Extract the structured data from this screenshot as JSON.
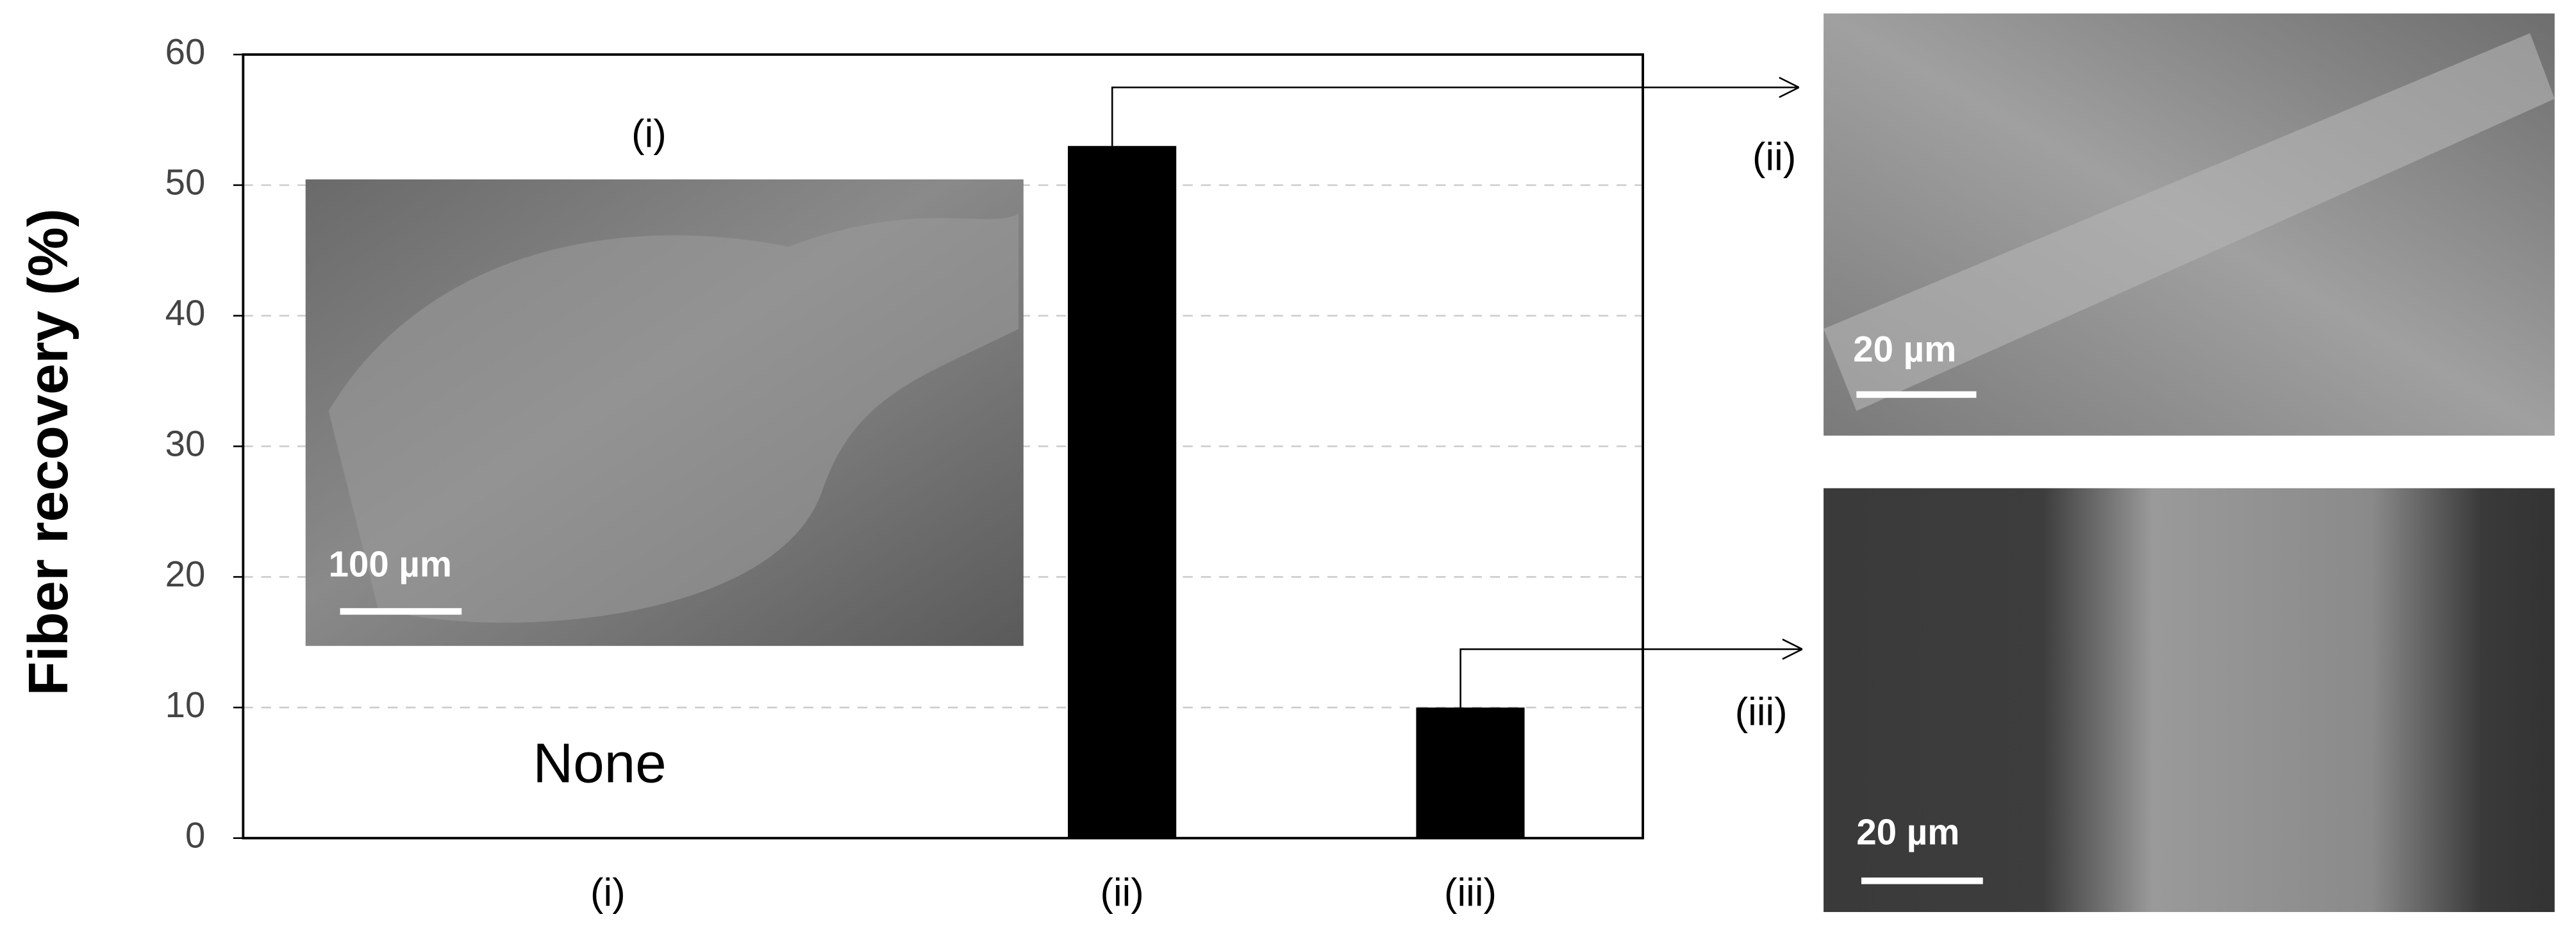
{
  "chart_data": {
    "type": "bar",
    "y_label": "Fiber recovery (%)",
    "categories": [
      "(i)",
      "(ii)",
      "(iii)"
    ],
    "values": [
      null,
      53,
      10
    ],
    "color": "#000000",
    "annotation": "None",
    "ylim": [
      0,
      60
    ],
    "yticks": [
      0,
      10,
      20,
      30,
      40,
      50,
      60
    ],
    "grid": true
  },
  "insets": [
    {
      "label": "(i)",
      "scale_bar": "100 µm"
    },
    {
      "label": "(ii)",
      "scale_bar": "20 µm"
    },
    {
      "label": "(iii)",
      "scale_bar": "20 µm"
    }
  ]
}
